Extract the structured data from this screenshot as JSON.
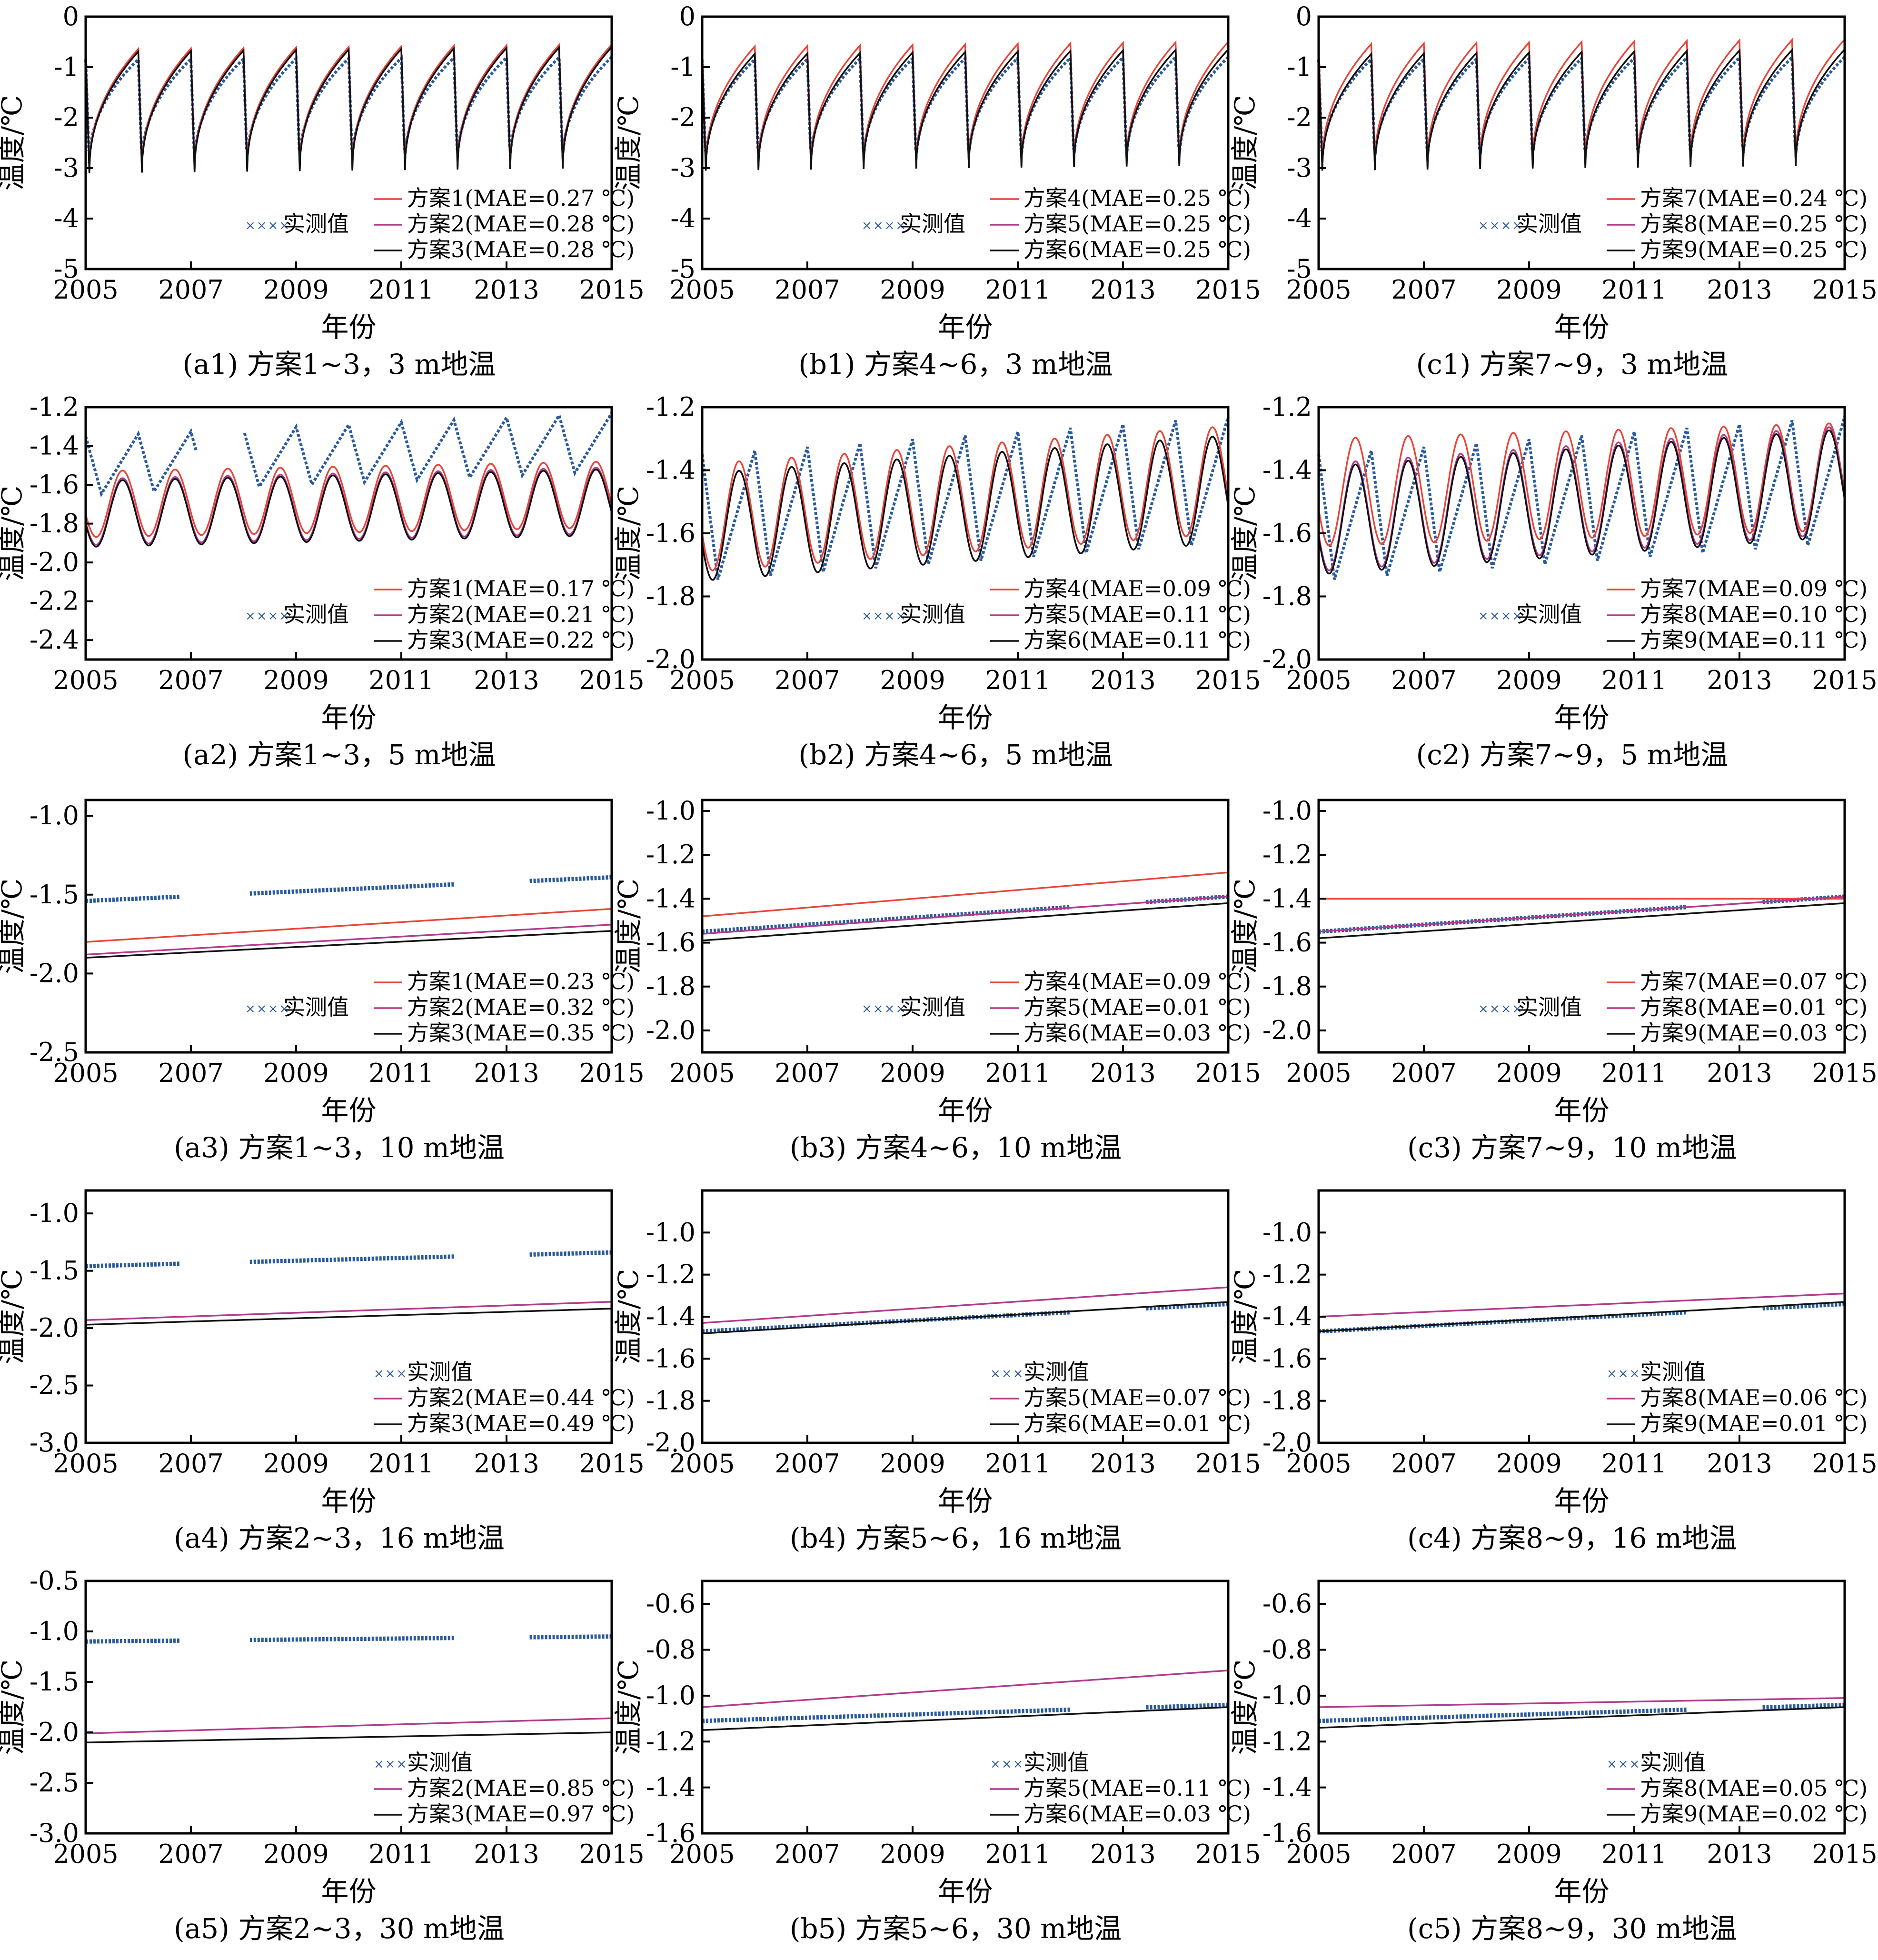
{
  "figure_text": {
    "xlabel": "年份",
    "ylabel": "温度/℃",
    "observed_label": "实测值"
  },
  "colors": {
    "scheme_a": "#e8463a",
    "scheme_b": "#b23a8e",
    "scheme_c": "#111111",
    "observed": "#2a5a9e",
    "axis": "#000000"
  },
  "chart_data": [
    {
      "type": "line",
      "id": "a1",
      "caption": "(a1) 方案1~3，3 m地温",
      "xlim": [
        2005,
        2015
      ],
      "xticks": [
        2005,
        2007,
        2009,
        2011,
        2013,
        2015
      ],
      "ylim": [
        -5,
        0
      ],
      "yticks": [
        "0",
        "-1",
        "-2",
        "-3",
        "-4",
        "-5"
      ],
      "series": [
        {
          "name": "方案1(MAE=0.27 ℃)",
          "style": "solid",
          "color": "scheme_a",
          "shape": "seasonal_sharp",
          "mean": -1.85,
          "amp": 1.2,
          "trend": 0.1
        },
        {
          "name": "方案2(MAE=0.28 ℃)",
          "style": "solid",
          "color": "scheme_b",
          "shape": "seasonal_sharp",
          "mean": -1.9,
          "amp": 1.2,
          "trend": 0.1
        },
        {
          "name": "方案3(MAE=0.28 ℃)",
          "style": "solid",
          "color": "scheme_c",
          "shape": "seasonal_sharp",
          "mean": -1.9,
          "amp": 1.2,
          "trend": 0.1
        },
        {
          "name": "实测值",
          "style": "marker",
          "color": "observed",
          "shape": "seasonal_obs",
          "mean": -1.9,
          "amp": 1.05,
          "trend": 0.05,
          "gaps": []
        }
      ]
    },
    {
      "type": "line",
      "id": "b1",
      "caption": "(b1) 方案4~6，3 m地温",
      "xlim": [
        2005,
        2015
      ],
      "xticks": [
        2005,
        2007,
        2009,
        2011,
        2013,
        2015
      ],
      "ylim": [
        -5,
        0
      ],
      "yticks": [
        "0",
        "-1",
        "-2",
        "-3",
        "-4",
        "-5"
      ],
      "series": [
        {
          "name": "方案4(MAE=0.25 ℃)",
          "style": "solid",
          "color": "scheme_a",
          "shape": "seasonal_sharp",
          "mean": -1.8,
          "amp": 1.2,
          "trend": 0.1
        },
        {
          "name": "方案5(MAE=0.25 ℃)",
          "style": "solid",
          "color": "scheme_b",
          "shape": "seasonal_sharp",
          "mean": -1.9,
          "amp": 1.15,
          "trend": 0.1
        },
        {
          "name": "方案6(MAE=0.25 ℃)",
          "style": "solid",
          "color": "scheme_c",
          "shape": "seasonal_sharp",
          "mean": -1.9,
          "amp": 1.15,
          "trend": 0.1
        },
        {
          "name": "实测值",
          "style": "marker",
          "color": "observed",
          "shape": "seasonal_obs",
          "mean": -1.9,
          "amp": 1.05,
          "trend": 0.05,
          "gaps": []
        }
      ]
    },
    {
      "type": "line",
      "id": "c1",
      "caption": "(c1) 方案7~9，3 m地温",
      "xlim": [
        2005,
        2015
      ],
      "xticks": [
        2005,
        2007,
        2009,
        2011,
        2013,
        2015
      ],
      "ylim": [
        -5,
        0
      ],
      "yticks": [
        "0",
        "-1",
        "-2",
        "-3",
        "-4",
        "-5"
      ],
      "series": [
        {
          "name": "方案7(MAE=0.24 ℃)",
          "style": "solid",
          "color": "scheme_a",
          "shape": "seasonal_sharp",
          "mean": -1.75,
          "amp": 1.2,
          "trend": 0.1
        },
        {
          "name": "方案8(MAE=0.25 ℃)",
          "style": "solid",
          "color": "scheme_b",
          "shape": "seasonal_sharp",
          "mean": -1.9,
          "amp": 1.15,
          "trend": 0.1
        },
        {
          "name": "方案9(MAE=0.25 ℃)",
          "style": "solid",
          "color": "scheme_c",
          "shape": "seasonal_sharp",
          "mean": -1.9,
          "amp": 1.15,
          "trend": 0.1
        },
        {
          "name": "实测值",
          "style": "marker",
          "color": "observed",
          "shape": "seasonal_obs",
          "mean": -1.9,
          "amp": 1.05,
          "trend": 0.05,
          "gaps": []
        }
      ]
    },
    {
      "type": "line",
      "id": "a2",
      "caption": "(a2) 方案1~3，5 m地温",
      "xlim": [
        2005,
        2015
      ],
      "xticks": [
        2005,
        2007,
        2009,
        2011,
        2013,
        2015
      ],
      "ylim": [
        -2.5,
        -1.2
      ],
      "yticks": [
        "-1.2",
        "-1.4",
        "-1.6",
        "-1.8",
        "-2.0",
        "-2.2",
        "-2.4"
      ],
      "series": [
        {
          "name": "方案1(MAE=0.17 ℃)",
          "style": "solid",
          "color": "scheme_a",
          "shape": "sine",
          "mean": -1.7,
          "amp": 0.17,
          "trend": 0.05
        },
        {
          "name": "方案2(MAE=0.21 ℃)",
          "style": "solid",
          "color": "scheme_b",
          "shape": "sine",
          "mean": -1.74,
          "amp": 0.17,
          "trend": 0.06
        },
        {
          "name": "方案3(MAE=0.22 ℃)",
          "style": "solid",
          "color": "scheme_c",
          "shape": "sine",
          "mean": -1.75,
          "amp": 0.17,
          "trend": 0.06
        },
        {
          "name": "实测值",
          "style": "marker",
          "color": "observed",
          "shape": "saw",
          "mean": -1.5,
          "amp": 0.15,
          "trend": 0.12,
          "gaps": [
            [
              2007.1,
              2008.0
            ]
          ]
        }
      ]
    },
    {
      "type": "line",
      "id": "b2",
      "caption": "(b2) 方案4~6，5 m地温",
      "xlim": [
        2005,
        2015
      ],
      "xticks": [
        2005,
        2007,
        2009,
        2011,
        2013,
        2015
      ],
      "ylim": [
        -2.0,
        -1.2
      ],
      "yticks": [
        "-1.2",
        "-1.4",
        "-1.6",
        "-1.8",
        "-2.0"
      ],
      "series": [
        {
          "name": "方案4(MAE=0.09 ℃)",
          "style": "solid",
          "color": "scheme_a",
          "shape": "sine",
          "mean": -1.55,
          "amp": 0.17,
          "trend": 0.12
        },
        {
          "name": "方案5(MAE=0.11 ℃)",
          "style": "solid",
          "color": "scheme_b",
          "shape": "sine",
          "mean": -1.58,
          "amp": 0.17,
          "trend": 0.12
        },
        {
          "name": "方案6(MAE=0.11 ℃)",
          "style": "solid",
          "color": "scheme_c",
          "shape": "sine",
          "mean": -1.58,
          "amp": 0.17,
          "trend": 0.12
        },
        {
          "name": "实测值",
          "style": "marker",
          "color": "observed",
          "shape": "saw",
          "mean": -1.55,
          "amp": 0.2,
          "trend": 0.12,
          "gaps": []
        }
      ]
    },
    {
      "type": "line",
      "id": "c2",
      "caption": "(c2) 方案7~9，5 m地温",
      "xlim": [
        2005,
        2015
      ],
      "xticks": [
        2005,
        2007,
        2009,
        2011,
        2013,
        2015
      ],
      "ylim": [
        -2.0,
        -1.2
      ],
      "yticks": [
        "-1.2",
        "-1.4",
        "-1.6",
        "-1.8",
        "-2.0"
      ],
      "series": [
        {
          "name": "方案7(MAE=0.09 ℃)",
          "style": "solid",
          "color": "scheme_a",
          "shape": "sine",
          "mean": -1.47,
          "amp": 0.17,
          "trend": 0.05
        },
        {
          "name": "方案8(MAE=0.10 ℃)",
          "style": "solid",
          "color": "scheme_b",
          "shape": "sine",
          "mean": -1.55,
          "amp": 0.17,
          "trend": 0.12
        },
        {
          "name": "方案9(MAE=0.11 ℃)",
          "style": "solid",
          "color": "scheme_c",
          "shape": "sine",
          "mean": -1.56,
          "amp": 0.17,
          "trend": 0.12
        },
        {
          "name": "实测值",
          "style": "marker",
          "color": "observed",
          "shape": "saw",
          "mean": -1.55,
          "amp": 0.2,
          "trend": 0.12,
          "gaps": []
        }
      ]
    },
    {
      "type": "line",
      "id": "a3",
      "caption": "(a3) 方案1~3，10 m地温",
      "xlim": [
        2005,
        2015
      ],
      "xticks": [
        2005,
        2007,
        2009,
        2011,
        2013,
        2015
      ],
      "ylim": [
        -2.5,
        -0.9
      ],
      "yticks": [
        "-1.0",
        "-1.5",
        "-2.0",
        "-2.5"
      ],
      "series": [
        {
          "name": "方案1(MAE=0.23 ℃)",
          "style": "solid",
          "color": "scheme_a",
          "shape": "linear",
          "start": -1.8,
          "end": -1.59
        },
        {
          "name": "方案2(MAE=0.32 ℃)",
          "style": "solid",
          "color": "scheme_b",
          "shape": "linear",
          "start": -1.88,
          "end": -1.69
        },
        {
          "name": "方案3(MAE=0.35 ℃)",
          "style": "solid",
          "color": "scheme_c",
          "shape": "linear",
          "start": -1.9,
          "end": -1.73
        },
        {
          "name": "实测值",
          "style": "marker",
          "color": "observed",
          "shape": "linear_obs",
          "start": -1.54,
          "end": -1.39,
          "gaps": [
            [
              2006.8,
              2008.1
            ],
            [
              2012.0,
              2013.4
            ]
          ]
        }
      ]
    },
    {
      "type": "line",
      "id": "b3",
      "caption": "(b3) 方案4~6，10 m地温",
      "xlim": [
        2005,
        2015
      ],
      "xticks": [
        2005,
        2007,
        2009,
        2011,
        2013,
        2015
      ],
      "ylim": [
        -2.1,
        -0.95
      ],
      "yticks": [
        "-1.0",
        "-1.2",
        "-1.4",
        "-1.6",
        "-1.8",
        "-2.0"
      ],
      "series": [
        {
          "name": "方案4(MAE=0.09 ℃)",
          "style": "solid",
          "color": "scheme_a",
          "shape": "linear",
          "start": -1.48,
          "end": -1.28
        },
        {
          "name": "方案5(MAE=0.01 ℃)",
          "style": "solid",
          "color": "scheme_b",
          "shape": "linear",
          "start": -1.56,
          "end": -1.39
        },
        {
          "name": "方案6(MAE=0.03 ℃)",
          "style": "solid",
          "color": "scheme_c",
          "shape": "linear",
          "start": -1.59,
          "end": -1.42
        },
        {
          "name": "实测值",
          "style": "marker",
          "color": "observed",
          "shape": "linear_obs",
          "start": -1.55,
          "end": -1.39,
          "gaps": [
            [
              2012.0,
              2013.4
            ]
          ]
        }
      ]
    },
    {
      "type": "line",
      "id": "c3",
      "caption": "(c3) 方案7~9，10 m地温",
      "xlim": [
        2005,
        2015
      ],
      "xticks": [
        2005,
        2007,
        2009,
        2011,
        2013,
        2015
      ],
      "ylim": [
        -2.1,
        -0.95
      ],
      "yticks": [
        "-1.0",
        "-1.2",
        "-1.4",
        "-1.6",
        "-1.8",
        "-2.0"
      ],
      "series": [
        {
          "name": "方案7(MAE=0.07 ℃)",
          "style": "solid",
          "color": "scheme_a",
          "shape": "linear",
          "start": -1.4,
          "end": -1.4
        },
        {
          "name": "方案8(MAE=0.01 ℃)",
          "style": "solid",
          "color": "scheme_b",
          "shape": "linear",
          "start": -1.55,
          "end": -1.39
        },
        {
          "name": "方案9(MAE=0.03 ℃)",
          "style": "solid",
          "color": "scheme_c",
          "shape": "linear",
          "start": -1.58,
          "end": -1.42
        },
        {
          "name": "实测值",
          "style": "marker",
          "color": "observed",
          "shape": "linear_obs",
          "start": -1.55,
          "end": -1.39,
          "gaps": [
            [
              2012.0,
              2013.4
            ]
          ]
        }
      ]
    },
    {
      "type": "line",
      "id": "a4",
      "caption": "(a4) 方案2~3，16 m地温",
      "xlim": [
        2005,
        2015
      ],
      "xticks": [
        2005,
        2007,
        2009,
        2011,
        2013,
        2015
      ],
      "ylim": [
        -3.0,
        -0.8
      ],
      "yticks": [
        "-1.0",
        "-1.5",
        "-2.0",
        "-2.5",
        "-3.0"
      ],
      "series": [
        {
          "name": "方案2(MAE=0.44 ℃)",
          "style": "solid",
          "color": "scheme_b",
          "shape": "linear",
          "start": -1.93,
          "end": -1.77
        },
        {
          "name": "方案3(MAE=0.49 ℃)",
          "style": "solid",
          "color": "scheme_c",
          "shape": "linear",
          "start": -1.97,
          "end": -1.83
        },
        {
          "name": "实测值",
          "style": "marker",
          "color": "observed",
          "shape": "linear_obs",
          "start": -1.46,
          "end": -1.34,
          "gaps": [
            [
              2006.8,
              2008.1
            ],
            [
              2012.0,
              2013.4
            ]
          ]
        }
      ],
      "legend_order": [
        2,
        0,
        1
      ]
    },
    {
      "type": "line",
      "id": "b4",
      "caption": "(b4) 方案5~6，16 m地温",
      "xlim": [
        2005,
        2015
      ],
      "xticks": [
        2005,
        2007,
        2009,
        2011,
        2013,
        2015
      ],
      "ylim": [
        -2.0,
        -0.8
      ],
      "yticks": [
        "-1.0",
        "-1.2",
        "-1.4",
        "-1.6",
        "-1.8",
        "-2.0"
      ],
      "series": [
        {
          "name": "方案5(MAE=0.07 ℃)",
          "style": "solid",
          "color": "scheme_b",
          "shape": "linear",
          "start": -1.43,
          "end": -1.26
        },
        {
          "name": "方案6(MAE=0.01 ℃)",
          "style": "solid",
          "color": "scheme_c",
          "shape": "linear",
          "start": -1.48,
          "end": -1.33
        },
        {
          "name": "实测值",
          "style": "marker",
          "color": "observed",
          "shape": "linear_obs",
          "start": -1.47,
          "end": -1.34,
          "gaps": [
            [
              2012.0,
              2013.4
            ]
          ]
        }
      ],
      "legend_order": [
        2,
        0,
        1
      ]
    },
    {
      "type": "line",
      "id": "c4",
      "caption": "(c4) 方案8~9，16 m地温",
      "xlim": [
        2005,
        2015
      ],
      "xticks": [
        2005,
        2007,
        2009,
        2011,
        2013,
        2015
      ],
      "ylim": [
        -2.0,
        -0.8
      ],
      "yticks": [
        "-1.0",
        "-1.2",
        "-1.4",
        "-1.6",
        "-1.8",
        "-2.0"
      ],
      "series": [
        {
          "name": "方案8(MAE=0.06 ℃)",
          "style": "solid",
          "color": "scheme_b",
          "shape": "linear",
          "start": -1.4,
          "end": -1.29
        },
        {
          "name": "方案9(MAE=0.01 ℃)",
          "style": "solid",
          "color": "scheme_c",
          "shape": "linear",
          "start": -1.47,
          "end": -1.33
        },
        {
          "name": "实测值",
          "style": "marker",
          "color": "observed",
          "shape": "linear_obs",
          "start": -1.47,
          "end": -1.34,
          "gaps": [
            [
              2012.0,
              2013.4
            ]
          ]
        }
      ],
      "legend_order": [
        2,
        0,
        1
      ]
    },
    {
      "type": "line",
      "id": "a5",
      "caption": "(a5) 方案2~3，30 m地温",
      "xlim": [
        2005,
        2015
      ],
      "xticks": [
        2005,
        2007,
        2009,
        2011,
        2013,
        2015
      ],
      "ylim": [
        -3.0,
        -0.5
      ],
      "yticks": [
        "-0.5",
        "-1.0",
        "-1.5",
        "-2.0",
        "-2.5",
        "-3.0"
      ],
      "series": [
        {
          "name": "方案2(MAE=0.85 ℃)",
          "style": "solid",
          "color": "scheme_b",
          "shape": "linear",
          "start": -2.01,
          "end": -1.86
        },
        {
          "name": "方案3(MAE=0.97 ℃)",
          "style": "solid",
          "color": "scheme_c",
          "shape": "linear",
          "start": -2.1,
          "end": -2.0
        },
        {
          "name": "实测值",
          "style": "marker",
          "color": "observed",
          "shape": "linear_obs",
          "start": -1.1,
          "end": -1.05,
          "gaps": [
            [
              2006.8,
              2008.1
            ],
            [
              2012.0,
              2013.4
            ]
          ]
        }
      ],
      "legend_order": [
        2,
        0,
        1
      ]
    },
    {
      "type": "line",
      "id": "b5",
      "caption": "(b5) 方案5~6，30 m地温",
      "xlim": [
        2005,
        2015
      ],
      "xticks": [
        2005,
        2007,
        2009,
        2011,
        2013,
        2015
      ],
      "ylim": [
        -1.6,
        -0.5
      ],
      "yticks": [
        "-0.6",
        "-0.8",
        "-1.0",
        "-1.2",
        "-1.4",
        "-1.6"
      ],
      "series": [
        {
          "name": "方案5(MAE=0.11 ℃)",
          "style": "solid",
          "color": "scheme_b",
          "shape": "linear",
          "start": -1.05,
          "end": -0.89
        },
        {
          "name": "方案6(MAE=0.03 ℃)",
          "style": "solid",
          "color": "scheme_c",
          "shape": "linear",
          "start": -1.15,
          "end": -1.05
        },
        {
          "name": "实测值",
          "style": "marker",
          "color": "observed",
          "shape": "linear_obs",
          "start": -1.11,
          "end": -1.04,
          "gaps": [
            [
              2012.0,
              2013.4
            ]
          ]
        }
      ],
      "legend_order": [
        2,
        0,
        1
      ]
    },
    {
      "type": "line",
      "id": "c5",
      "caption": "(c5) 方案8~9，30 m地温",
      "xlim": [
        2005,
        2015
      ],
      "xticks": [
        2005,
        2007,
        2009,
        2011,
        2013,
        2015
      ],
      "ylim": [
        -1.6,
        -0.5
      ],
      "yticks": [
        "-0.6",
        "-0.8",
        "-1.0",
        "-1.2",
        "-1.4",
        "-1.6"
      ],
      "series": [
        {
          "name": "方案8(MAE=0.05 ℃)",
          "style": "solid",
          "color": "scheme_b",
          "shape": "linear",
          "start": -1.05,
          "end": -1.01
        },
        {
          "name": "方案9(MAE=0.02 ℃)",
          "style": "solid",
          "color": "scheme_c",
          "shape": "linear",
          "start": -1.14,
          "end": -1.05
        },
        {
          "name": "实测值",
          "style": "marker",
          "color": "observed",
          "shape": "linear_obs",
          "start": -1.11,
          "end": -1.04,
          "gaps": [
            [
              2012.0,
              2013.4
            ]
          ]
        }
      ],
      "legend_order": [
        2,
        0,
        1
      ]
    }
  ]
}
